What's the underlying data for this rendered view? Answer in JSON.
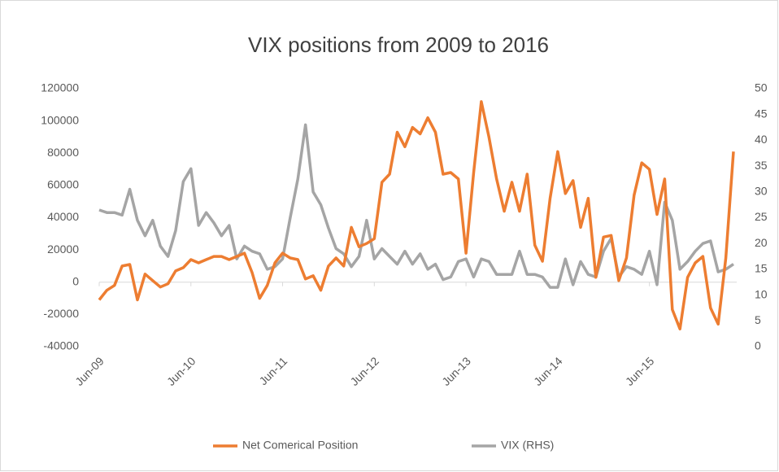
{
  "chart_data": {
    "type": "line",
    "title": "VIX positions from 2009 to 2016",
    "categories": [
      "Jun-09",
      null,
      null,
      null,
      null,
      null,
      null,
      null,
      null,
      null,
      null,
      null,
      "Jun-10",
      null,
      null,
      null,
      null,
      null,
      null,
      null,
      null,
      null,
      null,
      null,
      "Jun-11",
      null,
      null,
      null,
      null,
      null,
      null,
      null,
      null,
      null,
      null,
      null,
      "Jun-12",
      null,
      null,
      null,
      null,
      null,
      null,
      null,
      null,
      null,
      null,
      null,
      "Jun-13",
      null,
      null,
      null,
      null,
      null,
      null,
      null,
      null,
      null,
      null,
      null,
      "Jun-14",
      null,
      null,
      null,
      null,
      null,
      null,
      null,
      null,
      null,
      null,
      null,
      "Jun-15",
      null,
      null,
      null,
      null,
      null,
      null,
      null,
      null,
      null,
      null,
      null
    ],
    "series": [
      {
        "name": "Net Comerical Position",
        "color": "#ed7d31",
        "axis": "y",
        "values": [
          -11000,
          -5000,
          -2000,
          10000,
          11000,
          -11000,
          5000,
          1000,
          -3000,
          -1000,
          7000,
          9000,
          14000,
          12000,
          14000,
          16000,
          16000,
          14000,
          16000,
          18000,
          6000,
          -10000,
          -2000,
          12000,
          18000,
          15000,
          14000,
          2000,
          4000,
          -5000,
          10000,
          15000,
          10000,
          34000,
          22000,
          24000,
          27000,
          62000,
          67000,
          93000,
          84000,
          96000,
          92000,
          102000,
          93000,
          67000,
          68000,
          64000,
          18000,
          68000,
          112000,
          90000,
          64000,
          44000,
          62000,
          44000,
          67000,
          23000,
          13000,
          52000,
          81000,
          55000,
          63000,
          34000,
          52000,
          3000,
          28000,
          29000,
          1000,
          15000,
          54000,
          74000,
          70000,
          42000,
          64000,
          -17000,
          -29000,
          3000,
          12000,
          16000,
          -16000,
          -26000,
          15000,
          81000
        ]
      },
      {
        "name": "VIX (RHS)",
        "color": "#a5a5a5",
        "axis": "y2",
        "values": [
          26.5,
          26,
          26,
          25.5,
          30.5,
          24.5,
          21.5,
          24.5,
          19.5,
          17.5,
          22.5,
          32,
          34.5,
          23.5,
          26,
          24,
          21.5,
          23.5,
          17,
          19.5,
          18.5,
          18,
          15,
          15.5,
          17,
          25,
          32.5,
          43,
          30,
          27.5,
          23,
          19,
          18,
          15.5,
          17.5,
          24.5,
          17,
          19,
          17.5,
          16,
          18.5,
          16,
          18,
          15,
          16,
          13,
          13.5,
          16.5,
          17,
          13.5,
          17,
          16.5,
          14,
          14,
          14,
          18.5,
          14,
          14,
          13.5,
          11.5,
          11.5,
          17,
          12,
          16.5,
          14,
          13.5,
          18.5,
          21,
          13.5,
          15.5,
          15,
          14,
          18.5,
          12,
          28,
          24.5,
          15,
          16.5,
          18.5,
          20,
          20.5,
          14.5,
          15,
          16
        ]
      }
    ],
    "ylim": [
      -40000,
      120000
    ],
    "yticks": [
      -40000,
      -20000,
      0,
      20000,
      40000,
      60000,
      80000,
      100000,
      120000
    ],
    "y2lim": [
      0,
      50
    ],
    "y2ticks": [
      0,
      5,
      10,
      15,
      20,
      25,
      30,
      35,
      40,
      45,
      50
    ],
    "grid": false,
    "legend": "bottom"
  }
}
